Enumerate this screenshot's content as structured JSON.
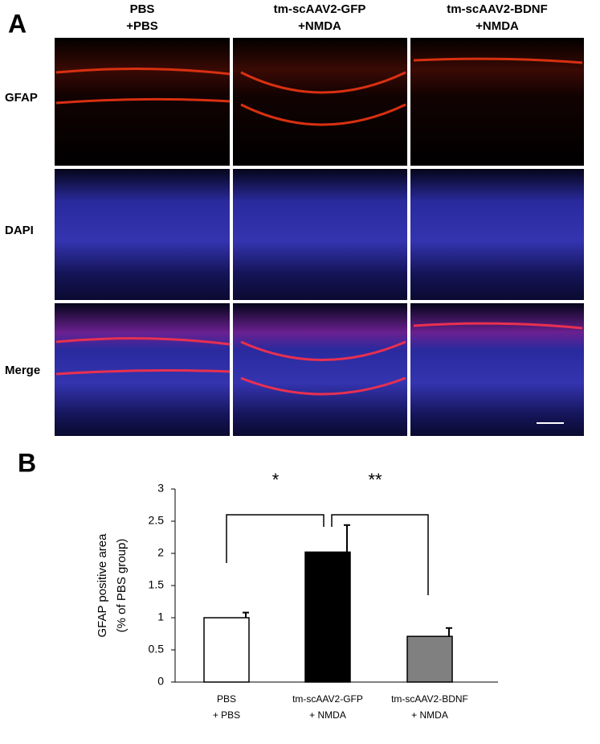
{
  "panel_a": {
    "label": "A",
    "columns": [
      [
        "PBS",
        "+PBS"
      ],
      [
        "tm-scAAV2-GFP",
        "+NMDA"
      ],
      [
        "tm-scAAV2-BDNF",
        "+NMDA"
      ]
    ],
    "rows": [
      "GFAP",
      "DAPI",
      "Merge"
    ]
  },
  "chart_data": {
    "type": "bar",
    "label": "B",
    "y_label": [
      "GFAP positive area",
      "(% of PBS group)"
    ],
    "categories": [
      "PBS",
      "tm-scAAV2-GFP",
      "tm-scAAV2-BDNF"
    ],
    "category_sublabels": [
      "+ PBS",
      "+ NMDA",
      "+ NMDA"
    ],
    "values": [
      1.0,
      2.02,
      0.71
    ],
    "errors": [
      0.08,
      0.42,
      0.13
    ],
    "colors": [
      "#ffffff",
      "#000000",
      "#808080"
    ],
    "ylim": [
      0,
      3
    ],
    "yticks": [
      0,
      0.5,
      1,
      1.5,
      2,
      2.5,
      3
    ],
    "annotations": [
      "*",
      "**"
    ]
  }
}
